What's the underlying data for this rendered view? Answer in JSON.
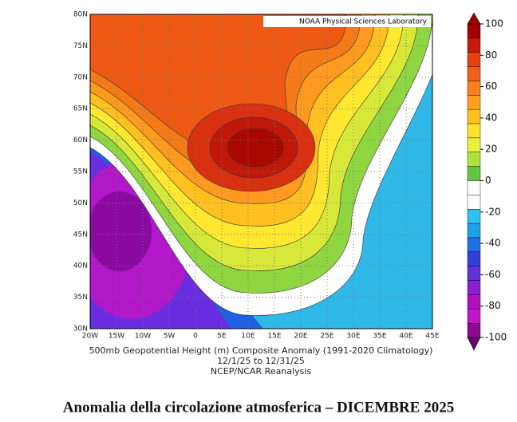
{
  "map": {
    "banner": "NOAA Physical Sciences Laboratory",
    "lon_labels": [
      "20W",
      "15W",
      "10W",
      "5W",
      "0",
      "5E",
      "10E",
      "15E",
      "20E",
      "25E",
      "30E",
      "35E",
      "40E",
      "45E"
    ],
    "lat_labels": [
      "80N",
      "75N",
      "70N",
      "65N",
      "60N",
      "55N",
      "50N",
      "45N",
      "40N",
      "35N",
      "30N"
    ],
    "caption": [
      "500mb Geopotential Height (m) Composite Anomaly (1991-2020 Climatology)",
      "12/1/25   to 12/31/25",
      "NCEP/NCAR Reanalysis"
    ],
    "colorbar": {
      "ticks": [
        100,
        80,
        60,
        40,
        20,
        0,
        -20,
        -40,
        -60,
        -80,
        -100
      ]
    }
  },
  "title": "Anomalia della circolazione atmosferica – DICEMBRE 2025"
}
